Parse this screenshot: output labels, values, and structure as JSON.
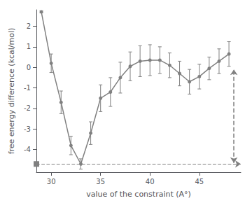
{
  "chart_data": {
    "type": "line",
    "xlabel": "value of the constraint (A°)",
    "ylabel": "free energy difference (kcal/mol)",
    "x": [
      29,
      30,
      31,
      32,
      33,
      34,
      35,
      36,
      37,
      38,
      39,
      40,
      41,
      42,
      43,
      44,
      45,
      46,
      47,
      48
    ],
    "series": [
      {
        "color": "#808080",
        "marker": "circle",
        "line_style": "solid",
        "values": [
          2.7,
          0.2,
          -1.7,
          -3.8,
          -4.7,
          -3.2,
          -1.5,
          -1.2,
          -0.5,
          0.05,
          0.3,
          0.35,
          0.35,
          0.1,
          -0.3,
          -0.7,
          -0.45,
          -0.05,
          0.3,
          0.65
        ],
        "errors": [
          0.05,
          0.45,
          0.55,
          0.45,
          0.25,
          0.55,
          0.65,
          0.7,
          0.75,
          0.7,
          0.75,
          0.75,
          0.65,
          0.6,
          0.6,
          0.6,
          0.6,
          0.55,
          0.6,
          0.6
        ]
      }
    ],
    "hline": -4.7,
    "arrow": {
      "x": 48.5,
      "y_start": -4.65,
      "y_end": -0.1
    },
    "xlim": [
      28.5,
      49.2
    ],
    "ylim": [
      -5.1,
      2.8
    ],
    "xticks": [
      30,
      35,
      40,
      45
    ],
    "yticks": [
      -4,
      -3,
      -2,
      -1,
      0,
      1,
      2
    ],
    "grid": false
  }
}
